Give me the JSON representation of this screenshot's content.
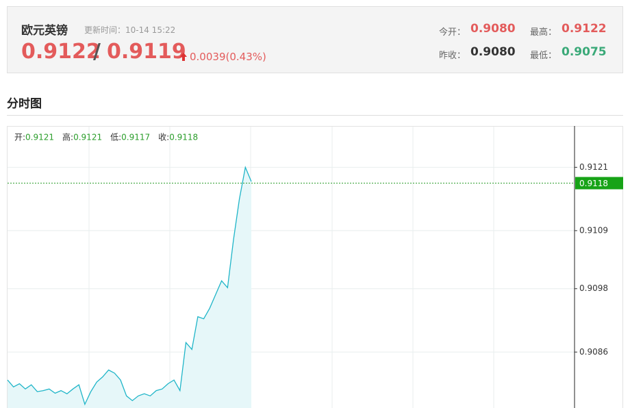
{
  "header": {
    "title": "欧元英镑",
    "update_time": "更新时间：10-14 15:22",
    "price_sell": "0.9122",
    "separator": "/",
    "price_buy": "0.9119",
    "change": "0.0039(0.43%)",
    "stats": [
      {
        "label": "今开：",
        "value": "0.9080"
      },
      {
        "label": "最高：",
        "value": "0.9122"
      },
      {
        "label": "昨收：",
        "value": "0.9080"
      },
      {
        "label": "最低：",
        "value": "0.9075"
      }
    ]
  },
  "section_title": "分时图",
  "chart_data": {
    "type": "line",
    "color": "#1fb5c8",
    "fill": "#e6f7f9",
    "ohlc": [
      {
        "label": "开:",
        "value": 0.9121
      },
      {
        "label": "高:",
        "value": 0.9121
      },
      {
        "label": "低:",
        "value": 0.9117
      },
      {
        "label": "收:",
        "value": 0.9118
      }
    ],
    "last": 0.9118,
    "values": [
      0.90807,
      0.90794,
      0.908,
      0.9079,
      0.90798,
      0.90785,
      0.90787,
      0.9079,
      0.90782,
      0.90787,
      0.90781,
      0.9079,
      0.90798,
      0.90761,
      0.90785,
      0.90803,
      0.90813,
      0.90826,
      0.9082,
      0.90807,
      0.90777,
      0.90768,
      0.90777,
      0.90781,
      0.90777,
      0.90787,
      0.9079,
      0.908,
      0.90807,
      0.90787,
      0.90878,
      0.90865,
      0.90927,
      0.90923,
      0.90943,
      0.90969,
      0.90995,
      0.90982,
      0.91073,
      0.9115,
      0.9121,
      0.91183
    ],
    "ylim": [
      0.90754,
      0.91287
    ],
    "yticks": [
      0.9121,
      0.9109,
      0.9098,
      0.9086
    ],
    "grid": true
  }
}
